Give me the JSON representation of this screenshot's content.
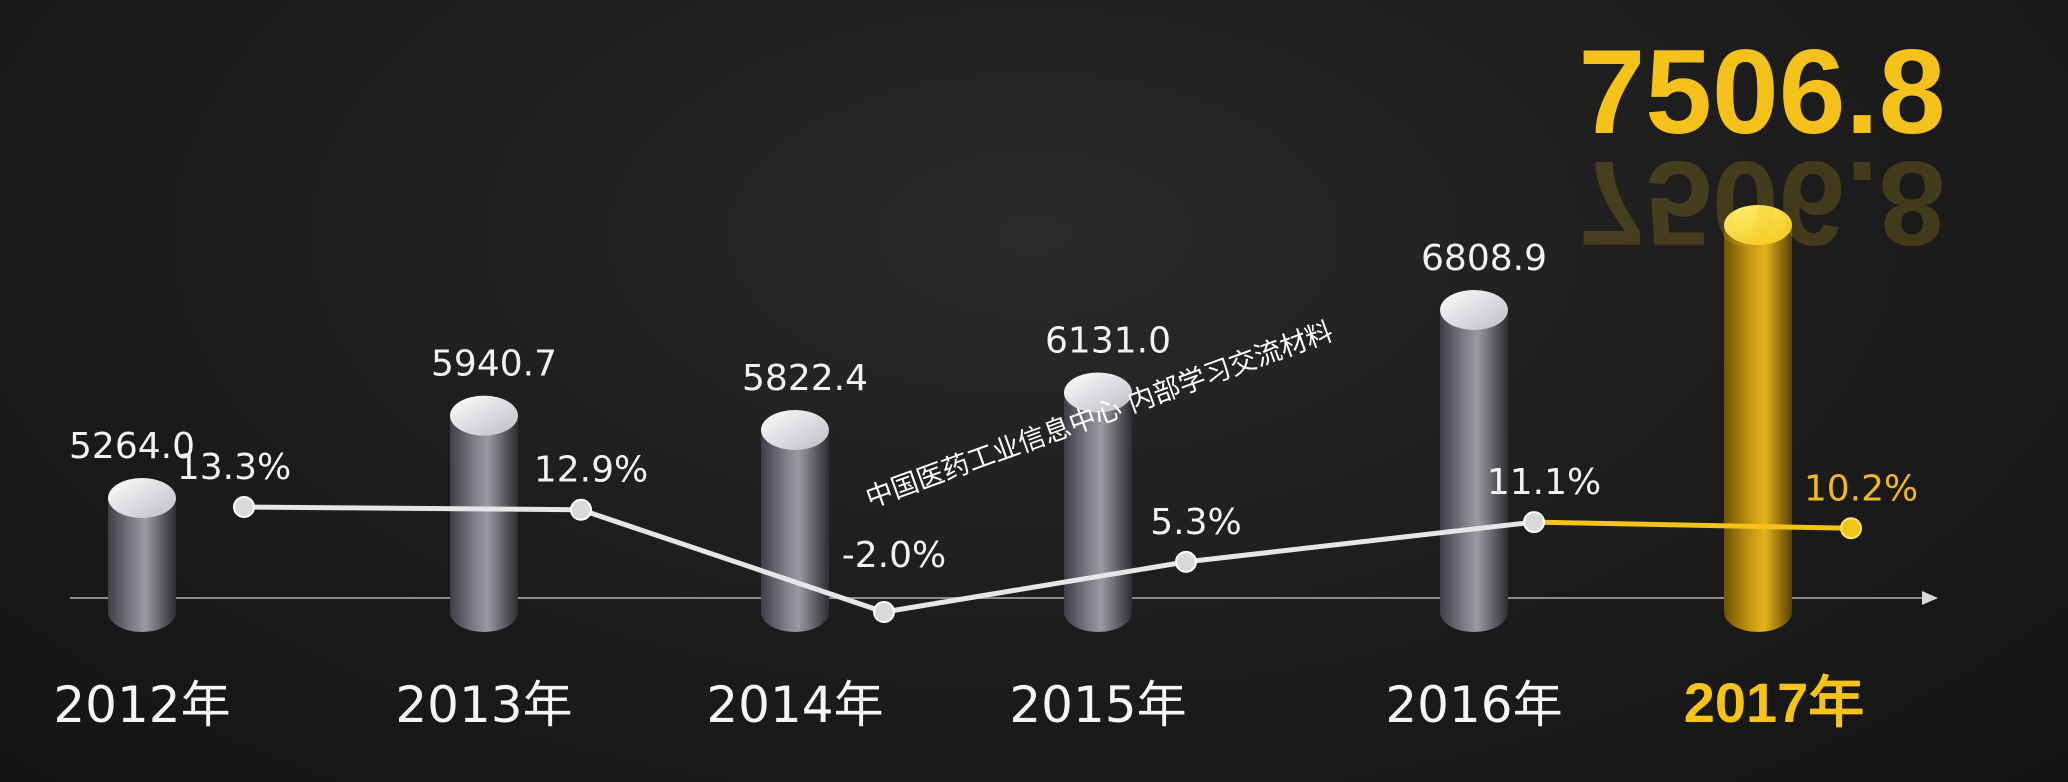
{
  "chart_data": {
    "type": "bar",
    "categories": [
      "2012年",
      "2013年",
      "2014年",
      "2015年",
      "2016年",
      "2017年"
    ],
    "values": [
      5264.0,
      5940.7,
      5822.4,
      6131.0,
      6808.9,
      7506.8
    ],
    "value_labels": [
      "5264.0",
      "5940.7",
      "5822.4",
      "6131.0",
      "6808.9",
      "7506.8"
    ],
    "growth_rates": [
      13.3,
      12.9,
      -2.0,
      5.3,
      11.1,
      10.2
    ],
    "growth_labels": [
      "13.3%",
      "12.9%",
      "-2.0%",
      "5.3%",
      "11.1%",
      "10.2%"
    ],
    "highlight_index": 5,
    "bar_style": "cylinder",
    "growth_line_style": "line with markers",
    "colors": {
      "bar": "#8a8a90",
      "highlight": "#f5c21b",
      "line": "#e6e6e6",
      "text": "#f2f2f2"
    }
  },
  "watermark": "中国医药工业信息中心 内部学习交流材料"
}
